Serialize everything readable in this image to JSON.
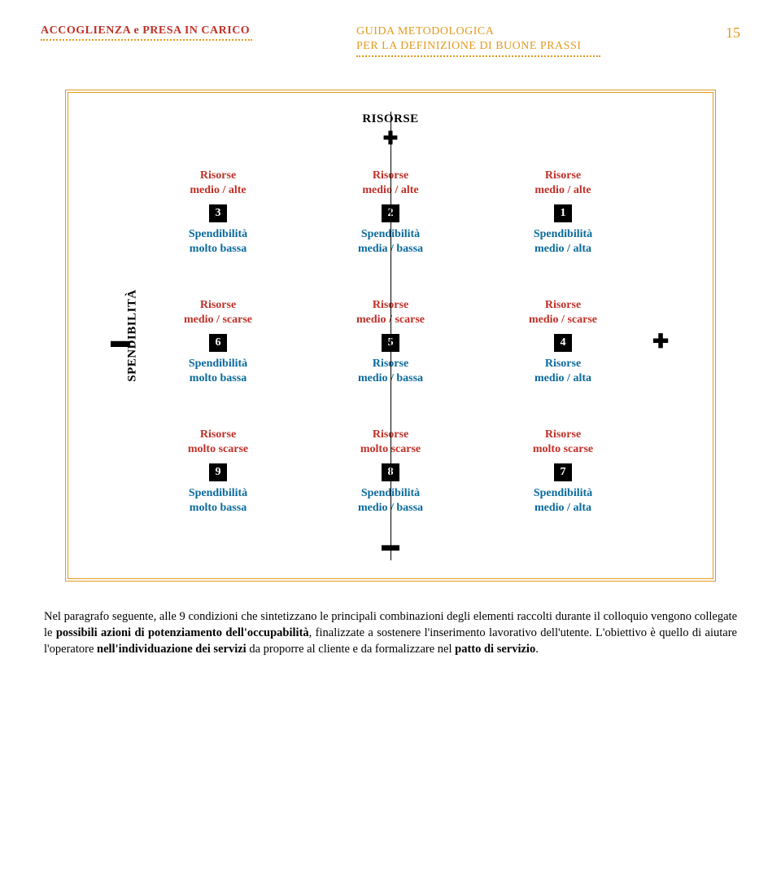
{
  "header": {
    "left_text": "ACCOGLIENZA e PRESA IN CARICO",
    "center_line1": "GUIDA  METODOLOGICA",
    "center_line2": "PER LA DEFINIZIONE DI BUONE PRASSI",
    "page_number": "15",
    "left_color": "#c03028",
    "center_color": "#e39a1f",
    "dots_color": "#e39a1f"
  },
  "diagram": {
    "border_color": "#e39a1f",
    "axis_top": "RISORSE",
    "axis_left": "SPENDIBILITÀ",
    "plus_sign": "✚",
    "minus_sign": "▬",
    "minus_left": "▬",
    "plus_right": "✚",
    "colors": {
      "risorse": "#c03028",
      "spend": "#0a6a9c",
      "num_bg": "#000000",
      "num_fg": "#ffffff"
    },
    "cells": [
      {
        "row": 0,
        "col": 0,
        "risorse_l1": "Risorse",
        "risorse_l2": "medio / alte",
        "num": "3",
        "spend_l1": "Spendibilità",
        "spend_l2": "molto bassa"
      },
      {
        "row": 0,
        "col": 1,
        "risorse_l1": "Risorse",
        "risorse_l2": "medio / alte",
        "num": "2",
        "spend_l1": "Spendibilità",
        "spend_l2": "media / bassa"
      },
      {
        "row": 0,
        "col": 2,
        "risorse_l1": "Risorse",
        "risorse_l2": "medio / alte",
        "num": "1",
        "spend_l1": "Spendibilità",
        "spend_l2": "medio / alta"
      },
      {
        "row": 1,
        "col": 0,
        "risorse_l1": "Risorse",
        "risorse_l2": "medio / scarse",
        "num": "6",
        "spend_l1": "Spendibilità",
        "spend_l2": "molto bassa"
      },
      {
        "row": 1,
        "col": 1,
        "risorse_l1": "Risorse",
        "risorse_l2": "medio / scarse",
        "num": "5",
        "spend_l1": "Risorse",
        "spend_l2": "medio / bassa"
      },
      {
        "row": 1,
        "col": 2,
        "risorse_l1": "Risorse",
        "risorse_l2": "medio / scarse",
        "num": "4",
        "spend_l1": "Risorse",
        "spend_l2": "medio / alta"
      },
      {
        "row": 2,
        "col": 0,
        "risorse_l1": "Risorse",
        "risorse_l2": "molto scarse",
        "num": "9",
        "spend_l1": "Spendibilità",
        "spend_l2": "molto bassa"
      },
      {
        "row": 2,
        "col": 1,
        "risorse_l1": "Risorse",
        "risorse_l2": "molto scarse",
        "num": "8",
        "spend_l1": "Spendibilità",
        "spend_l2": "medio / bassa"
      },
      {
        "row": 2,
        "col": 2,
        "risorse_l1": "Risorse",
        "risorse_l2": "molto scarse",
        "num": "7",
        "spend_l1": "Spendibilità",
        "spend_l2": "medio / alta"
      }
    ]
  },
  "paragraph": {
    "pre": "Nel paragrafo seguente, alle 9 condizioni che sintetizzano le principali combinazioni degli elementi  raccolti durante il colloquio vengono collegate le ",
    "bold1": "possibili azioni di potenziamento dell'occupabilità",
    "mid1": ", finalizzate a  sostenere l'inserimento lavorativo dell'utente. L'obiettivo è quello di aiutare l'operatore  ",
    "bold2": "nell'individuazione dei servizi",
    "mid2": " da proporre al cliente e da formalizzare nel ",
    "bold3": "patto di servizio",
    "post": "."
  }
}
